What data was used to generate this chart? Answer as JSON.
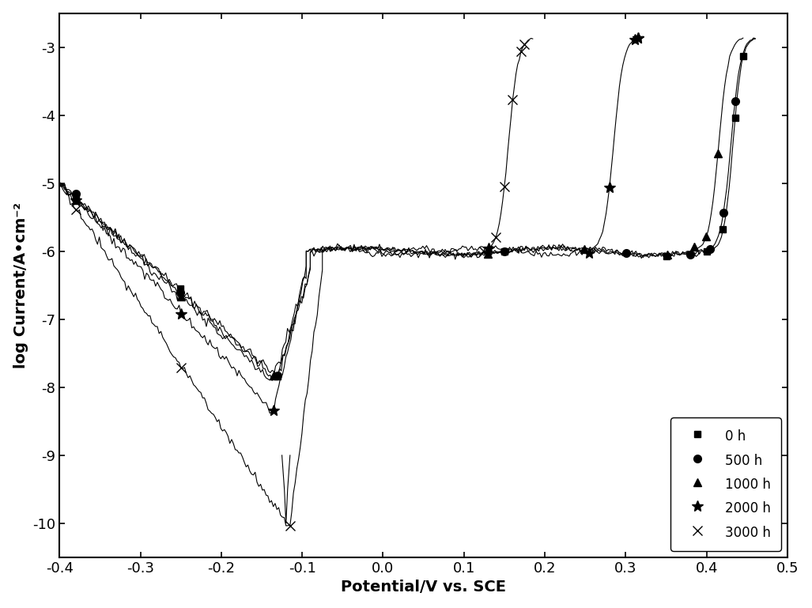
{
  "title": "",
  "xlabel": "Potential/V vs. SCE",
  "ylabel": "log Current/A•cm⁻²",
  "xlim": [
    -0.4,
    0.5
  ],
  "ylim": [
    -10.5,
    -2.5
  ],
  "yticks": [
    -10,
    -9,
    -8,
    -7,
    -6,
    -5,
    -4,
    -3
  ],
  "ytick_labels": [
    "-10",
    "-9",
    "-8",
    "-7",
    "-6",
    "-5",
    "-4",
    "-3"
  ],
  "xticks": [
    -0.4,
    -0.3,
    -0.2,
    -0.1,
    0.0,
    0.1,
    0.2,
    0.3,
    0.4,
    0.5
  ],
  "background_color": "#ffffff",
  "legend_loc": "lower right",
  "series": [
    {
      "label": "0 h",
      "marker": "s",
      "markersize": 6,
      "breakdown_potential": 0.405,
      "corrosion_potential": -0.13,
      "min_current": -7.8,
      "passive_current": -6.0,
      "final_current": -2.85
    },
    {
      "label": "500 h",
      "marker": "o",
      "markersize": 7,
      "breakdown_potential": 0.4,
      "corrosion_potential": -0.13,
      "min_current": -7.85,
      "passive_current": -6.0,
      "final_current": -2.85
    },
    {
      "label": "1000 h",
      "marker": "^",
      "markersize": 7,
      "breakdown_potential": 0.385,
      "corrosion_potential": -0.135,
      "min_current": -7.9,
      "passive_current": -6.0,
      "final_current": -2.85
    },
    {
      "label": "2000 h",
      "marker": "*",
      "markersize": 10,
      "breakdown_potential": 0.255,
      "corrosion_potential": -0.135,
      "min_current": -8.3,
      "passive_current": -6.0,
      "final_current": -2.85
    },
    {
      "label": "3000 h",
      "marker": "x",
      "markersize": 8,
      "breakdown_potential": 0.125,
      "corrosion_potential": -0.115,
      "min_current": -10.0,
      "passive_current": -6.0,
      "final_current": -2.85
    }
  ]
}
